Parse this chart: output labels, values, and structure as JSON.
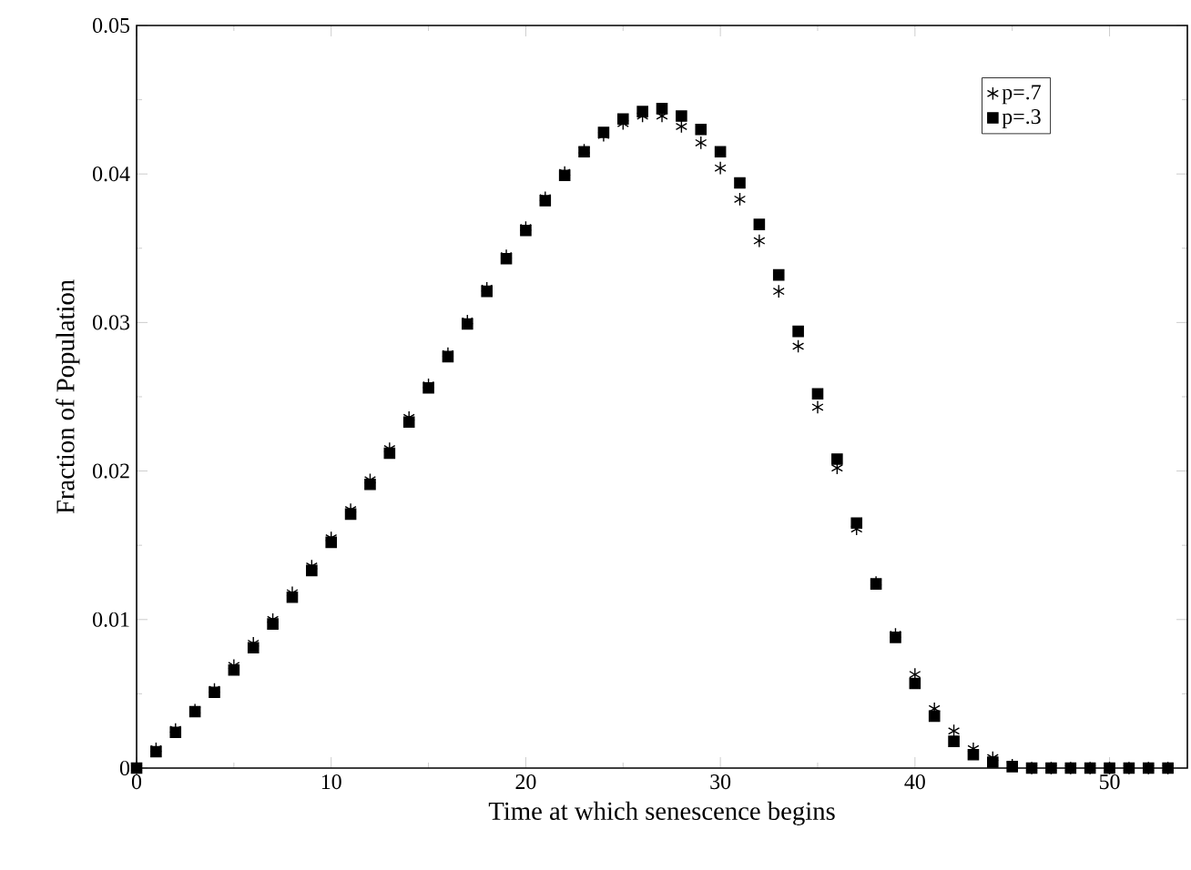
{
  "chart_data": {
    "type": "scatter",
    "xlabel": "Time at which senescence begins",
    "ylabel": "Fraction of Population",
    "x": [
      0,
      1,
      2,
      3,
      4,
      5,
      6,
      7,
      8,
      9,
      10,
      11,
      12,
      13,
      14,
      15,
      16,
      17,
      18,
      19,
      20,
      21,
      22,
      23,
      24,
      25,
      26,
      27,
      28,
      29,
      30,
      31,
      32,
      33,
      34,
      35,
      36,
      37,
      38,
      39,
      40,
      41,
      42,
      43,
      44,
      45,
      46,
      47,
      48,
      49,
      50,
      51,
      52,
      53
    ],
    "series": [
      {
        "name": "p=.7",
        "color": "#000000",
        "marker": "cross",
        "values": [
          0,
          0.0013,
          0.0026,
          0.0039,
          0.0053,
          0.0069,
          0.0084,
          0.01,
          0.0118,
          0.0136,
          0.0155,
          0.0174,
          0.0194,
          0.0215,
          0.0236,
          0.0258,
          0.0279,
          0.0301,
          0.0323,
          0.0345,
          0.0364,
          0.0384,
          0.0401,
          0.0416,
          0.0426,
          0.0434,
          0.0439,
          0.0439,
          0.0432,
          0.0421,
          0.0404,
          0.0383,
          0.0355,
          0.0321,
          0.0284,
          0.0243,
          0.0202,
          0.0161,
          0.0125,
          0.009,
          0.0063,
          0.004,
          0.0025,
          0.0013,
          0.0007,
          0.0002,
          0,
          0,
          0,
          0,
          0,
          0,
          0,
          0
        ]
      },
      {
        "name": "p=.3",
        "color": "#000000",
        "marker": "square",
        "values": [
          0,
          0.0011,
          0.0024,
          0.0038,
          0.0051,
          0.0066,
          0.0081,
          0.0097,
          0.0115,
          0.0133,
          0.0152,
          0.0171,
          0.0191,
          0.0212,
          0.0233,
          0.0256,
          0.0277,
          0.0299,
          0.0321,
          0.0343,
          0.0362,
          0.0382,
          0.0399,
          0.0415,
          0.0428,
          0.0437,
          0.0442,
          0.0444,
          0.0439,
          0.043,
          0.0415,
          0.0394,
          0.0366,
          0.0332,
          0.0294,
          0.0252,
          0.0208,
          0.0165,
          0.0124,
          0.0088,
          0.0057,
          0.0035,
          0.0018,
          0.0009,
          0.0004,
          0.0001,
          0,
          0,
          0,
          0,
          0,
          0,
          0,
          0
        ]
      }
    ],
    "xlim": [
      0,
      54
    ],
    "ylim": [
      0,
      0.05
    ],
    "xticks": [
      0,
      10,
      20,
      30,
      40,
      50
    ],
    "yticks": [
      0,
      0.01,
      0.02,
      0.03,
      0.04,
      0.05
    ],
    "legend": "top right"
  }
}
